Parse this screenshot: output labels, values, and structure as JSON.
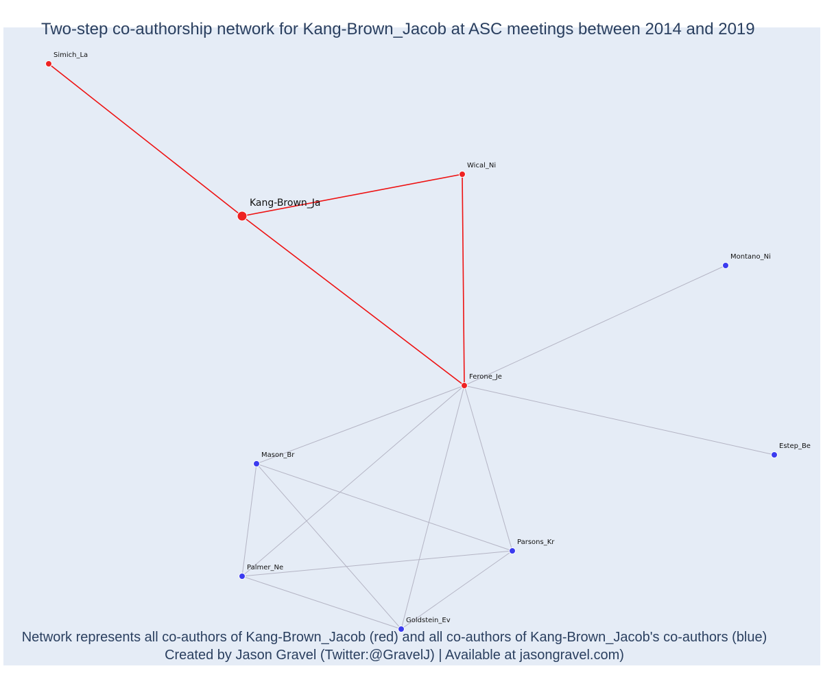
{
  "title": "Two-step co-authorship network for Kang-Brown_Jacob at ASC meetings between 2014 and 2019",
  "footer": {
    "line1": "Network represents all co-authors of Kang-Brown_Jacob (red) and all co-authors of Kang-Brown_Jacob's co-authors (blue)",
    "line2": "Created by Jason Gravel (Twitter:@GravelJ) | Available at jasongravel.com)"
  },
  "colors": {
    "plot_bg": "#e5ecf6",
    "first_degree": "#ee2222",
    "second_degree": "#3b3bef",
    "red_edge": "#ee1111",
    "grey_edge": "#b4b4c4"
  },
  "nodes": [
    {
      "id": "Simich_La",
      "label": "Simich_La",
      "group": "red",
      "main": false
    },
    {
      "id": "Kang-Brown_Ja",
      "label": "Kang-Brown_Ja",
      "group": "red",
      "main": true
    },
    {
      "id": "Wical_Ni",
      "label": "Wical_Ni",
      "group": "red",
      "main": false
    },
    {
      "id": "Ferone_Je",
      "label": "Ferone_Je",
      "group": "red",
      "main": false
    },
    {
      "id": "Montano_Ni",
      "label": "Montano_Ni",
      "group": "blue",
      "main": false
    },
    {
      "id": "Estep_Be",
      "label": "Estep_Be",
      "group": "blue",
      "main": false
    },
    {
      "id": "Mason_Br",
      "label": "Mason_Br",
      "group": "blue",
      "main": false
    },
    {
      "id": "Parsons_Kr",
      "label": "Parsons_Kr",
      "group": "blue",
      "main": false
    },
    {
      "id": "Palmer_Ne",
      "label": "Palmer_Ne",
      "group": "blue",
      "main": false
    },
    {
      "id": "Goldstein_Ev",
      "label": "Goldstein_Ev",
      "group": "blue",
      "main": false
    }
  ],
  "edges": [
    {
      "source": "Kang-Brown_Ja",
      "target": "Simich_La",
      "type": "red"
    },
    {
      "source": "Kang-Brown_Ja",
      "target": "Wical_Ni",
      "type": "red"
    },
    {
      "source": "Kang-Brown_Ja",
      "target": "Ferone_Je",
      "type": "red"
    },
    {
      "source": "Wical_Ni",
      "target": "Ferone_Je",
      "type": "red"
    },
    {
      "source": "Ferone_Je",
      "target": "Montano_Ni",
      "type": "grey"
    },
    {
      "source": "Ferone_Je",
      "target": "Estep_Be",
      "type": "grey"
    },
    {
      "source": "Ferone_Je",
      "target": "Mason_Br",
      "type": "grey"
    },
    {
      "source": "Ferone_Je",
      "target": "Palmer_Ne",
      "type": "grey"
    },
    {
      "source": "Ferone_Je",
      "target": "Goldstein_Ev",
      "type": "grey"
    },
    {
      "source": "Ferone_Je",
      "target": "Parsons_Kr",
      "type": "grey"
    },
    {
      "source": "Mason_Br",
      "target": "Palmer_Ne",
      "type": "grey"
    },
    {
      "source": "Mason_Br",
      "target": "Goldstein_Ev",
      "type": "grey"
    },
    {
      "source": "Mason_Br",
      "target": "Parsons_Kr",
      "type": "grey"
    },
    {
      "source": "Palmer_Ne",
      "target": "Parsons_Kr",
      "type": "grey"
    },
    {
      "source": "Palmer_Ne",
      "target": "Goldstein_Ev",
      "type": "grey"
    },
    {
      "source": "Parsons_Kr",
      "target": "Goldstein_Ev",
      "type": "grey"
    }
  ]
}
